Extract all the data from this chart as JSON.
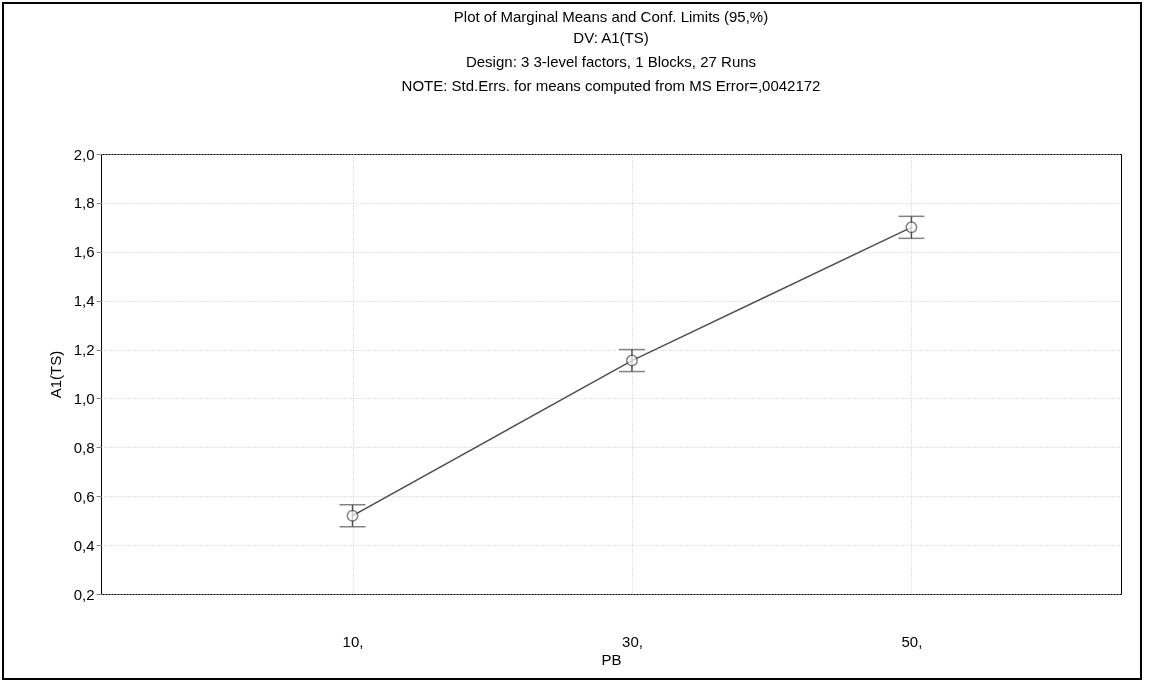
{
  "chart_data": {
    "type": "line",
    "title": "Plot of Marginal Means and Conf. Limits (95,%)",
    "subtitle": "DV: A1(TS)\nDesign: 3 3-level factors, 1 Blocks, 27 Runs\nNOTE: Std.Errs. for means computed from MS Error=,0042172",
    "xlabel": "PB",
    "ylabel": "A1(TS)",
    "x": [
      10,
      30,
      50
    ],
    "xlim": [
      -8,
      65
    ],
    "xticks": [
      {
        "value": 10,
        "label": "10,"
      },
      {
        "value": 30,
        "label": "30,"
      },
      {
        "value": 50,
        "label": "50,"
      }
    ],
    "series": [
      {
        "color": "#505050",
        "values": [
          0.52,
          1.155,
          1.7
        ],
        "errors": [
          0.045,
          0.045,
          0.045
        ]
      }
    ],
    "ylim": [
      0.2,
      2.0
    ],
    "yticks": [
      {
        "value": 0.2,
        "label": "0,2"
      },
      {
        "value": 0.4,
        "label": "0,4"
      },
      {
        "value": 0.6,
        "label": "0,6"
      },
      {
        "value": 0.8,
        "label": "0,8"
      },
      {
        "value": 1.0,
        "label": "1,0"
      },
      {
        "value": 1.2,
        "label": "1,2"
      },
      {
        "value": 1.4,
        "label": "1,4"
      },
      {
        "value": 1.6,
        "label": "1,6"
      },
      {
        "value": 1.8,
        "label": "1,8"
      },
      {
        "value": 2.0,
        "label": "2,0"
      }
    ],
    "grid": true,
    "marker": "circle",
    "line_style": "solid"
  }
}
